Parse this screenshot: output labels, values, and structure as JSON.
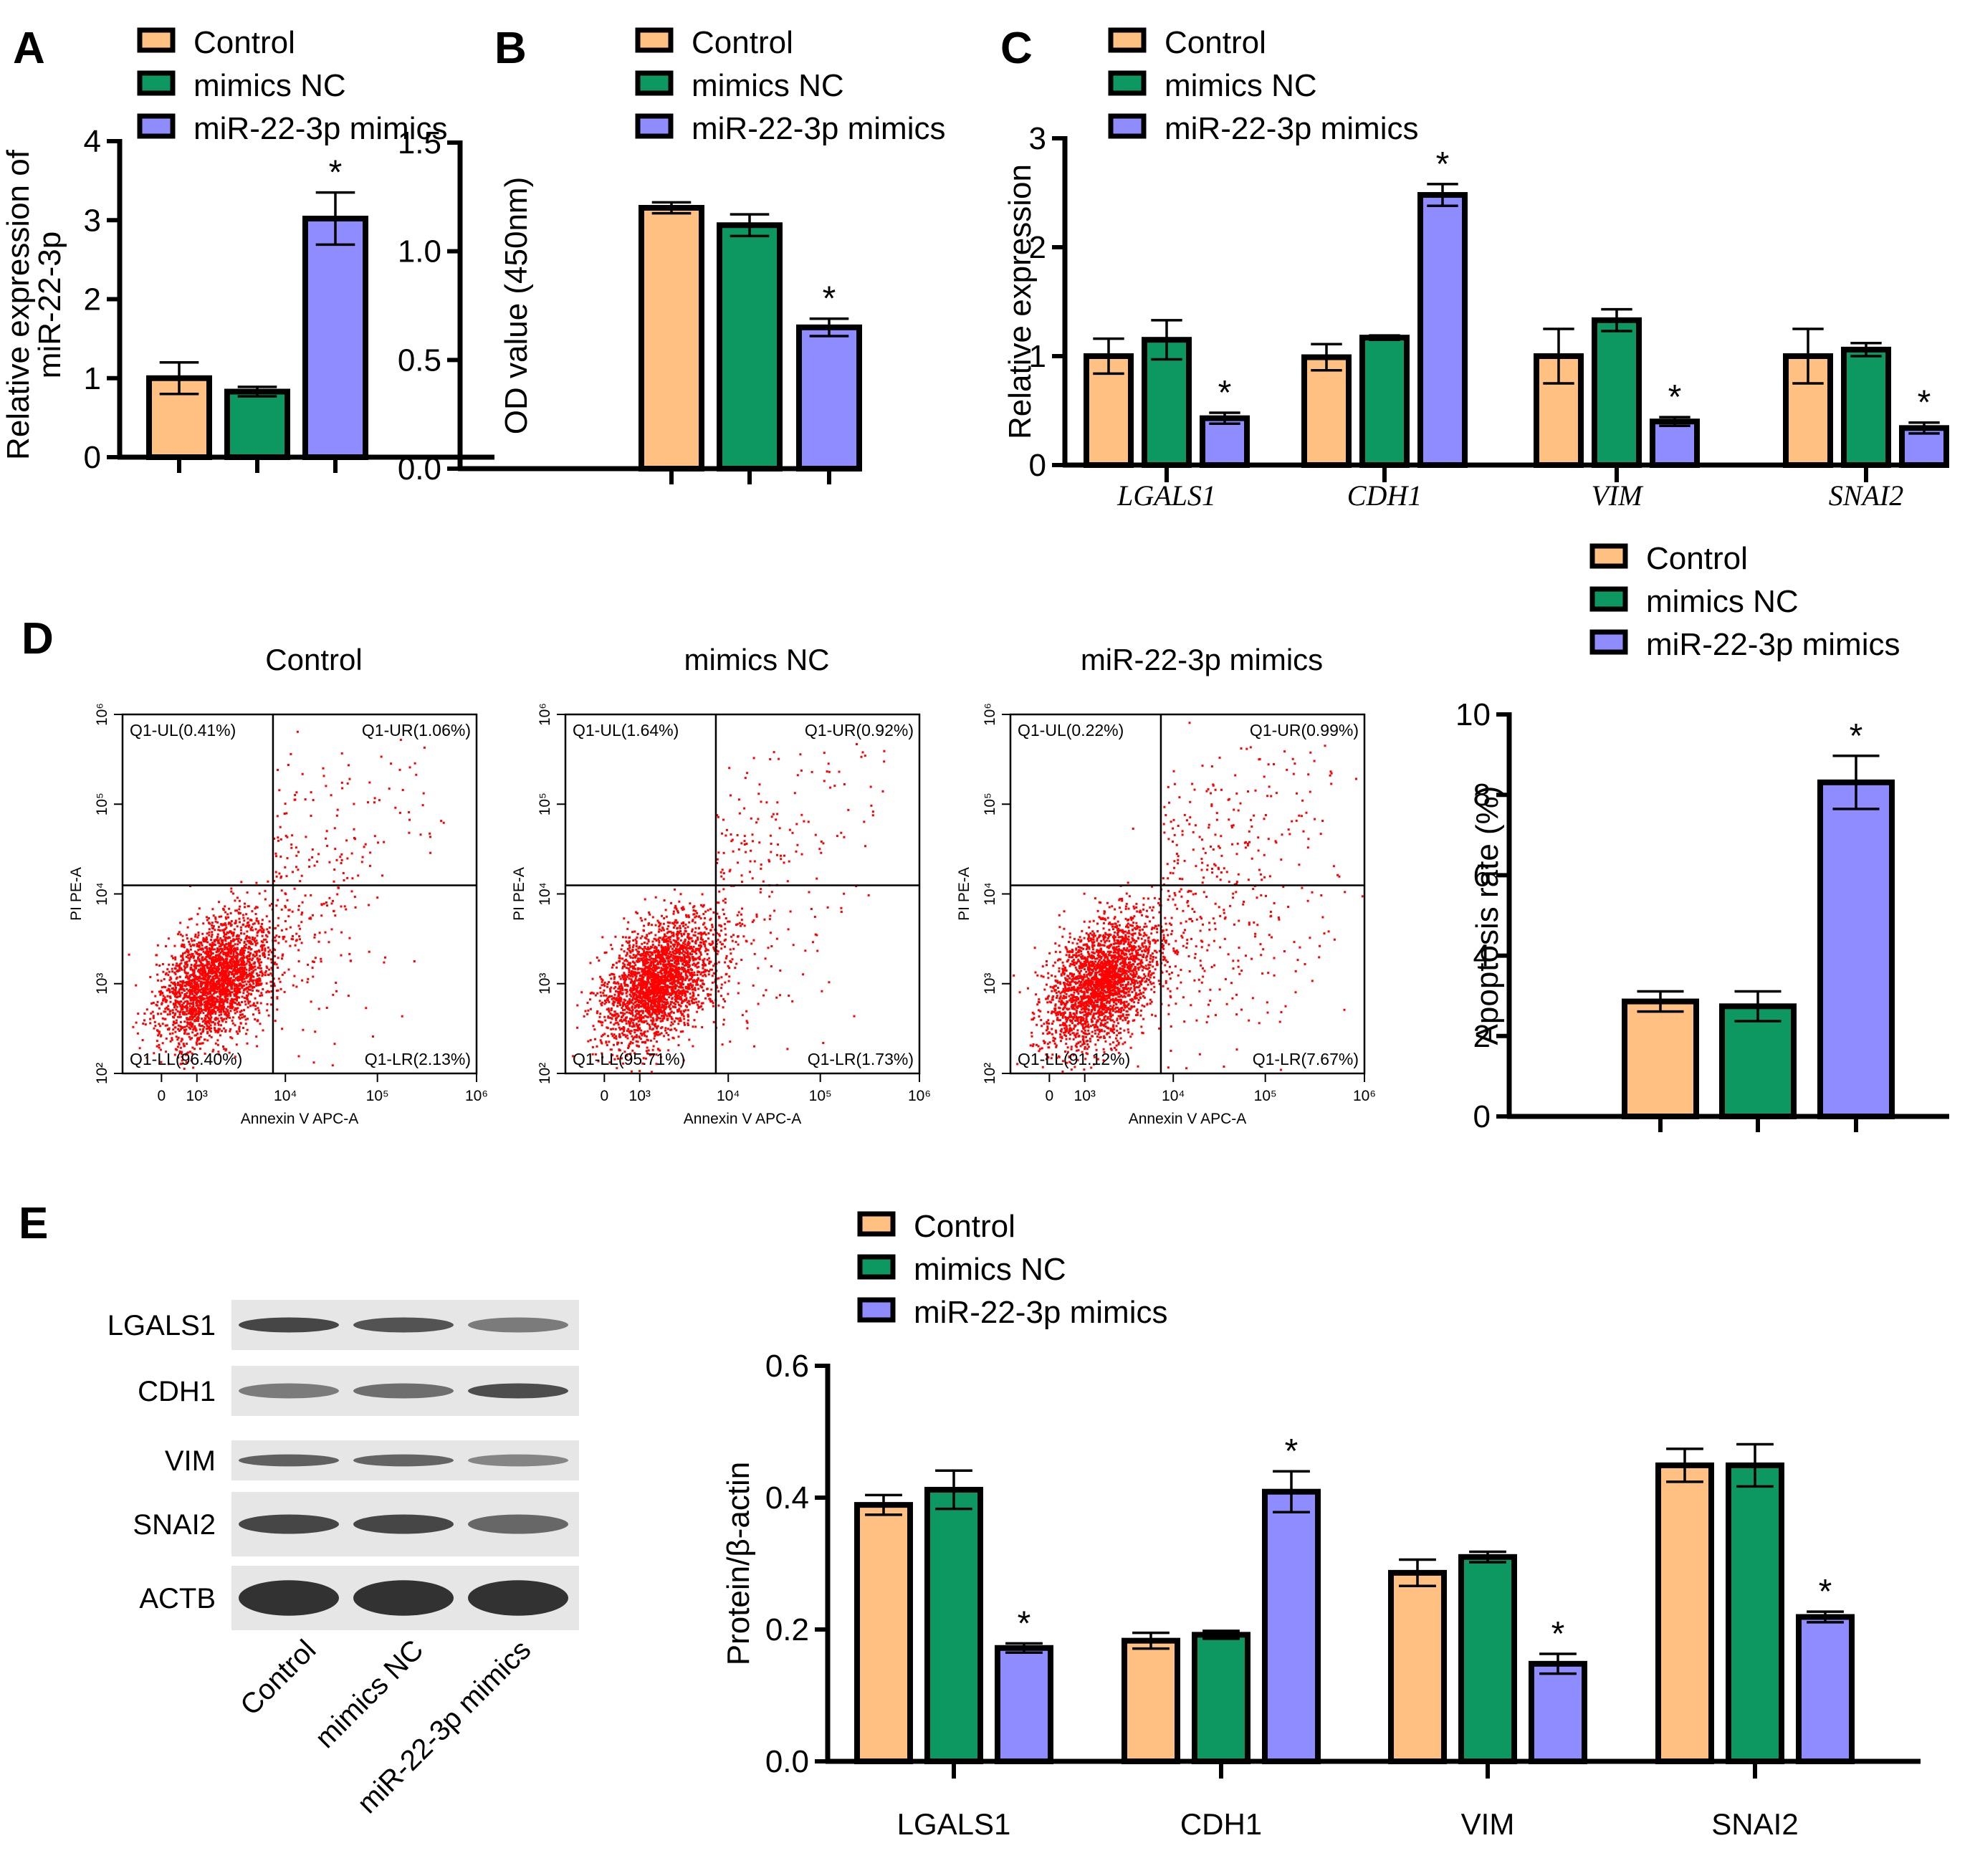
{
  "figure": {
    "panel_letters": [
      "A",
      "B",
      "C",
      "D",
      "E"
    ]
  },
  "legend": {
    "items": [
      {
        "label": "Control",
        "color": "#FFC081"
      },
      {
        "label": "mimics NC",
        "color": "#0E9861"
      },
      {
        "label": "miR-22-3p mimics",
        "color": "#8E8CFF"
      }
    ]
  },
  "flow": {
    "x_axis_label": "Annexin  V APC-A",
    "y_axis_label": "PI PE-A",
    "x_ticks": [
      "0",
      "10³",
      "10⁴",
      "10⁵",
      "10⁶"
    ],
    "y_ticks": [
      "10²",
      "10³",
      "10⁴",
      "10⁵",
      "10⁶"
    ],
    "plots": [
      {
        "title": "Control",
        "UL": "Q1-UL(0.41%)",
        "UR": "Q1-UR(1.06%)",
        "LL": "Q1-LL(96.40%)",
        "LR": "Q1-LR(2.13%)"
      },
      {
        "title": "mimics NC",
        "UL": "Q1-UL(1.64%)",
        "UR": "Q1-UR(0.92%)",
        "LL": "Q1-LL(95.71%)",
        "LR": "Q1-LR(1.73%)"
      },
      {
        "title": "miR-22-3p mimics",
        "UL": "Q1-UL(0.22%)",
        "UR": "Q1-UR(0.99%)",
        "LL": "Q1-LL(91.12%)",
        "LR": "Q1-LR(7.67%)"
      }
    ],
    "dot_color": "#FF0000"
  },
  "western_blot": {
    "proteins": [
      "LGALS1",
      "CDH1",
      "VIM",
      "SNAI2",
      "ACTB"
    ],
    "lanes": [
      "Control",
      "mimics NC",
      "miR-22-3p mimics"
    ]
  },
  "chart_data": [
    {
      "id": "A",
      "type": "bar",
      "title": "",
      "xlabel": "",
      "ylabel": "Relative expression of miR-22-3p",
      "ylabel_lines": [
        "Relative expression of",
        "miR-22-3p"
      ],
      "ylim": [
        0,
        4
      ],
      "yticks": [
        0,
        1,
        2,
        3,
        4
      ],
      "categories": [
        "Control",
        "mimics NC",
        "miR-22-3p mimics"
      ],
      "values": [
        1.0,
        0.83,
        3.02
      ],
      "errors": [
        0.2,
        0.06,
        0.33
      ],
      "significance": [
        "",
        "",
        "*"
      ],
      "legend": "top"
    },
    {
      "id": "B",
      "type": "bar",
      "title": "",
      "xlabel": "",
      "ylabel": "OD value (450nm)",
      "ylim": [
        0,
        1.5
      ],
      "yticks": [
        "0.0",
        "0.5",
        "1.0",
        "1.5"
      ],
      "categories": [
        "Control",
        "mimics NC",
        "miR-22-3p mimics"
      ],
      "values": [
        1.2,
        1.12,
        0.65
      ],
      "errors": [
        0.025,
        0.05,
        0.04
      ],
      "significance": [
        "",
        "",
        "*"
      ],
      "legend": "top"
    },
    {
      "id": "C",
      "type": "bar",
      "title": "",
      "xlabel": "",
      "ylabel": "Relative expression",
      "ylim": [
        0,
        3
      ],
      "yticks": [
        0,
        1,
        2,
        3
      ],
      "categories": [
        "LGALS1",
        "CDH1",
        "VIM",
        "SNAI2"
      ],
      "series": [
        {
          "name": "Control",
          "values": [
            1.0,
            0.99,
            1.0,
            1.0
          ],
          "errors": [
            0.16,
            0.12,
            0.25,
            0.25
          ],
          "significance": [
            "",
            "",
            "",
            ""
          ]
        },
        {
          "name": "mimics NC",
          "values": [
            1.15,
            1.17,
            1.33,
            1.06
          ],
          "errors": [
            0.18,
            0.02,
            0.1,
            0.06
          ],
          "significance": [
            "",
            "",
            "",
            ""
          ]
        },
        {
          "name": "miR-22-3p mimics",
          "values": [
            0.43,
            2.48,
            0.4,
            0.34
          ],
          "errors": [
            0.05,
            0.1,
            0.04,
            0.05
          ],
          "significance": [
            "*",
            "*",
            "*",
            "*"
          ]
        }
      ],
      "legend": "top-left"
    },
    {
      "id": "D",
      "type": "bar",
      "title": "",
      "xlabel": "",
      "ylabel": "Apoptosis rate (%)",
      "ylim": [
        0,
        10
      ],
      "yticks": [
        0,
        2,
        4,
        6,
        8,
        10
      ],
      "categories": [
        "Control",
        "mimics NC",
        "miR-22-3p mimics"
      ],
      "values": [
        2.86,
        2.74,
        8.31
      ],
      "errors": [
        0.25,
        0.37,
        0.66
      ],
      "significance": [
        "",
        "",
        "*"
      ],
      "legend": "top"
    },
    {
      "id": "E",
      "type": "bar",
      "title": "",
      "xlabel": "",
      "ylabel": "Protein/β-actin",
      "ylim": [
        0,
        0.6
      ],
      "yticks": [
        "0.0",
        "0.2",
        "0.4",
        "0.6"
      ],
      "categories": [
        "LGALS1",
        "CDH1",
        "VIM",
        "SNAI2"
      ],
      "series": [
        {
          "name": "Control",
          "values": [
            0.389,
            0.183,
            0.286,
            0.449
          ],
          "errors": [
            0.015,
            0.012,
            0.02,
            0.025
          ],
          "significance": [
            "",
            "",
            "",
            ""
          ]
        },
        {
          "name": "mimics NC",
          "values": [
            0.412,
            0.192,
            0.31,
            0.449
          ],
          "errors": [
            0.029,
            0.006,
            0.008,
            0.032
          ],
          "significance": [
            "",
            "",
            "",
            ""
          ]
        },
        {
          "name": "miR-22-3p mimics",
          "values": [
            0.172,
            0.409,
            0.148,
            0.219
          ],
          "errors": [
            0.007,
            0.031,
            0.015,
            0.008
          ],
          "significance": [
            "*",
            "*",
            "*",
            "*"
          ]
        }
      ],
      "legend": "top-left"
    }
  ]
}
